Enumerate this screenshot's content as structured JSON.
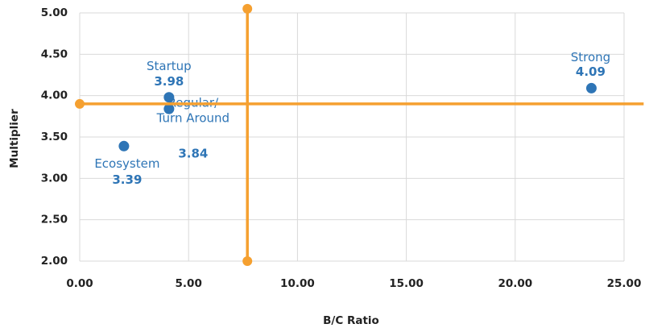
{
  "chart_data": {
    "type": "scatter",
    "x_label": "B/C Ratio",
    "y_label": "Multiplier",
    "xlim": [
      0,
      25
    ],
    "ylim": [
      2,
      5
    ],
    "xticks": [
      {
        "value": 0,
        "label": "0.00"
      },
      {
        "value": 5,
        "label": "5.00"
      },
      {
        "value": 10,
        "label": "10.00"
      },
      {
        "value": 15,
        "label": "15.00"
      },
      {
        "value": 20,
        "label": "20.00"
      },
      {
        "value": 25,
        "label": "25.00"
      }
    ],
    "yticks": [
      {
        "value": 2,
        "label": "2.00"
      },
      {
        "value": 2.5,
        "label": "2.50"
      },
      {
        "value": 3,
        "label": "3.00"
      },
      {
        "value": 3.5,
        "label": "3.50"
      },
      {
        "value": 4,
        "label": "4.00"
      },
      {
        "value": 4.5,
        "label": "4.50"
      },
      {
        "value": 5,
        "label": "5.00"
      }
    ],
    "grid": true,
    "series": [
      {
        "color": "#2e75b6",
        "x": [
          4.1,
          4.1,
          2.03,
          23.5
        ],
        "values": [
          3.98,
          3.84,
          3.39,
          4.09
        ],
        "value_labels": [
          "3.98",
          "3.84",
          "3.39",
          "4.09"
        ],
        "labels": [
          [
            "Startup"
          ],
          [
            "Regular/",
            "Turn Around"
          ],
          [
            "Ecosystem"
          ],
          [
            "Strong"
          ]
        ]
      },
      {
        "color": "#f5a030",
        "line": true,
        "x": [
          0,
          25.9
        ],
        "values": [
          3.9,
          3.9
        ]
      },
      {
        "color": "#f5a030",
        "line": true,
        "x": [
          7.7,
          7.7
        ],
        "values": [
          2.0,
          5.05
        ]
      }
    ]
  }
}
